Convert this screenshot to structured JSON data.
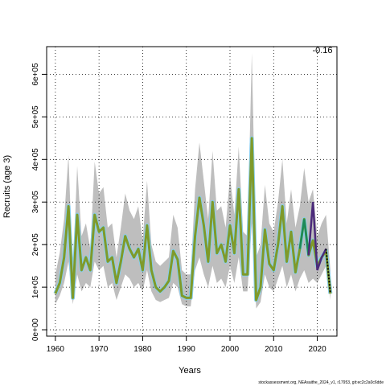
{
  "chart_data": {
    "type": "line",
    "xlabel": "Years",
    "ylabel": "Recruits (age 3)",
    "xlim": [
      1958,
      2024.5
    ],
    "ylim": [
      -15000,
      665000
    ],
    "x_ticks": [
      1960,
      1970,
      1980,
      1990,
      2000,
      2010,
      2020
    ],
    "y_ticks": [
      0,
      100000,
      200000,
      300000,
      400000,
      500000,
      600000
    ],
    "y_tick_labels": [
      "0e+00",
      "1e+05",
      "2e+05",
      "3e+05",
      "4e+05",
      "5e+05",
      "6e+05"
    ],
    "grid": true,
    "corner_label": "-0.16",
    "credit": "stockassessment.org, NEAsaithe_2024_v1, r17953, git:ec2c2a0c6dde",
    "band": {
      "x": [
        1960,
        1961,
        1962,
        1963,
        1964,
        1965,
        1966,
        1967,
        1968,
        1969,
        1970,
        1971,
        1972,
        1973,
        1974,
        1975,
        1976,
        1977,
        1978,
        1979,
        1980,
        1981,
        1982,
        1983,
        1984,
        1985,
        1986,
        1987,
        1988,
        1989,
        1990,
        1991,
        1992,
        1993,
        1994,
        1995,
        1996,
        1997,
        1998,
        1999,
        2000,
        2001,
        2002,
        2003,
        2004,
        2005,
        2006,
        2007,
        2008,
        2009,
        2010,
        2011,
        2012,
        2013,
        2014,
        2015,
        2016,
        2017,
        2018,
        2019,
        2020,
        2021,
        2022,
        2023
      ],
      "lower": [
        60000,
        80000,
        110000,
        160000,
        60000,
        130000,
        90000,
        110000,
        100000,
        160000,
        140000,
        150000,
        100000,
        110000,
        70000,
        100000,
        130000,
        120000,
        100000,
        110000,
        90000,
        140000,
        90000,
        70000,
        65000,
        70000,
        75000,
        110000,
        100000,
        60000,
        55000,
        55000,
        140000,
        170000,
        130000,
        100000,
        150000,
        110000,
        120000,
        100000,
        150000,
        110000,
        170000,
        90000,
        90000,
        250000,
        50000,
        65000,
        130000,
        100000,
        90000,
        120000,
        150000,
        100000,
        130000,
        90000,
        120000,
        140000,
        110000,
        120000,
        110000,
        130000,
        150000,
        70000
      ],
      "upper": [
        130000,
        180000,
        260000,
        410000,
        130000,
        385000,
        220000,
        250000,
        190000,
        395000,
        320000,
        335000,
        240000,
        250000,
        170000,
        240000,
        320000,
        280000,
        260000,
        290000,
        210000,
        350000,
        200000,
        160000,
        150000,
        160000,
        170000,
        270000,
        240000,
        140000,
        130000,
        130000,
        330000,
        440000,
        350000,
        260000,
        420000,
        280000,
        290000,
        240000,
        360000,
        270000,
        430000,
        230000,
        220000,
        650000,
        170000,
        200000,
        340000,
        250000,
        230000,
        300000,
        400000,
        250000,
        330000,
        240000,
        290000,
        380000,
        300000,
        330000,
        220000,
        250000,
        270000,
        140000
      ]
    },
    "series": [
      {
        "values": [
          85000,
          110000,
          170000,
          290000,
          75000,
          270000,
          140000,
          170000,
          140000,
          270000,
          230000,
          240000,
          160000,
          170000,
          110000,
          160000,
          220000,
          190000,
          170000,
          190000,
          140000,
          245000,
          140000,
          100000,
          90000,
          100000,
          115000,
          185000,
          165000,
          80000,
          75000,
          75000,
          220000,
          310000,
          245000,
          160000,
          300000,
          180000,
          200000,
          160000,
          245000,
          180000,
          330000,
          130000,
          130000,
          450000,
          70000,
          100000,
          235000,
          155000,
          140000,
          200000,
          290000,
          160000,
          230000,
          135000,
          190000,
          260000,
          175000,
          210000,
          150000,
          170000,
          185000,
          85000
        ]
      },
      {
        "x": [
          2016,
          2017,
          2018,
          2019,
          2020,
          2021,
          2022,
          2023
        ],
        "values": [
          190000,
          260000,
          175000,
          300000,
          140000,
          170000,
          190000,
          85000
        ]
      }
    ]
  }
}
